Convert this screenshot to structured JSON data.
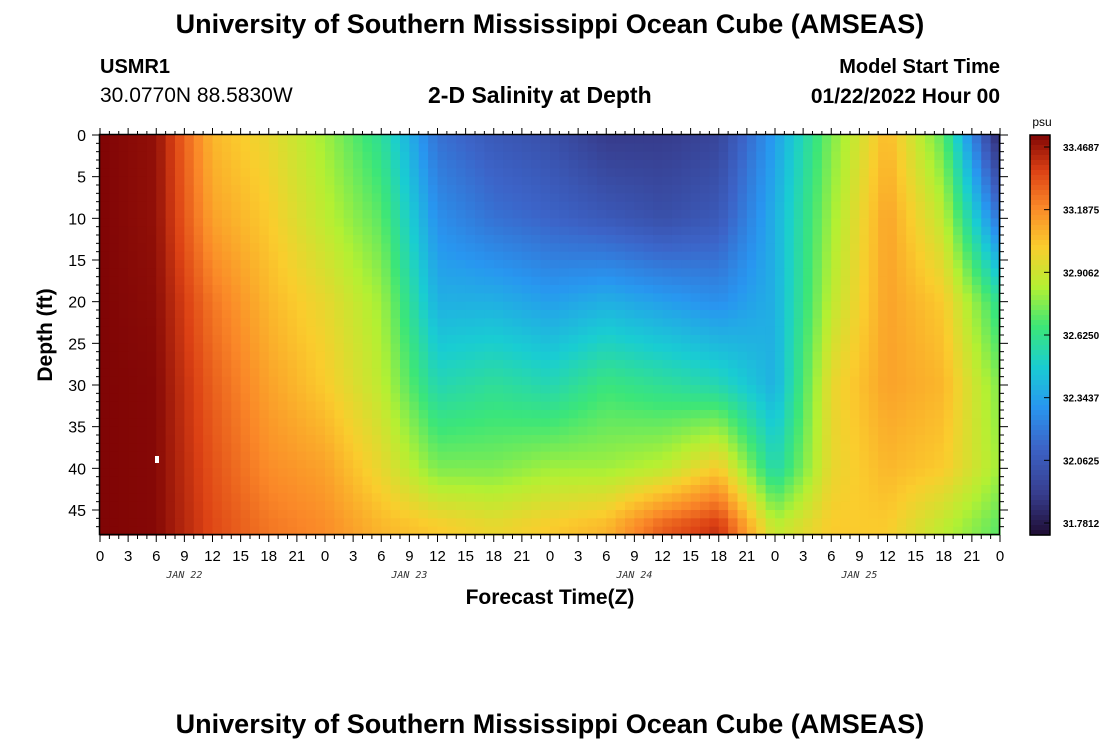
{
  "header": {
    "title": "University of Southern Mississippi Ocean Cube (AMSEAS)",
    "station_id": "USMR1",
    "station_location": "30.0770N  88.5830W",
    "plot_title": "2-D Salinity at Depth",
    "start_label": "Model Start Time",
    "start_value": "01/22/2022 Hour 00"
  },
  "footer": {
    "title": "University of Southern Mississippi Ocean Cube (AMSEAS)"
  },
  "chart_data": {
    "type": "heatmap",
    "title": "2-D Salinity at Depth",
    "xlabel": "Forecast Time(Z)",
    "ylabel": "Depth (ft)",
    "x_ticks": [
      "0",
      "3",
      "6",
      "9",
      "12",
      "15",
      "18",
      "21",
      "0",
      "3",
      "6",
      "9",
      "12",
      "15",
      "18",
      "21",
      "0",
      "3",
      "6",
      "9",
      "12",
      "15",
      "18",
      "21",
      "0",
      "3",
      "6",
      "9",
      "12",
      "15",
      "18",
      "21",
      "0"
    ],
    "x_hours": [
      0,
      3,
      6,
      9,
      12,
      15,
      18,
      21,
      24,
      27,
      30,
      33,
      36,
      39,
      42,
      45,
      48,
      51,
      54,
      57,
      60,
      63,
      66,
      69,
      72,
      75,
      78,
      81,
      84,
      87,
      90,
      93,
      96
    ],
    "date_labels": [
      {
        "label": "JAN 22",
        "hour": 9
      },
      {
        "label": "JAN 23",
        "hour": 33
      },
      {
        "label": "JAN 24",
        "hour": 57
      },
      {
        "label": "JAN 25",
        "hour": 81
      }
    ],
    "y_ticks": [
      0,
      5,
      10,
      15,
      20,
      25,
      30,
      35,
      40,
      45
    ],
    "xlim": [
      0,
      96
    ],
    "ylim": [
      0,
      48
    ],
    "colorbar": {
      "unit": "psu",
      "range": [
        31.7812,
        33.4687
      ],
      "ticks": [
        "33.4687",
        "33.1875",
        "32.9062",
        "32.6250",
        "32.3437",
        "32.0625",
        "31.7812"
      ],
      "tick_values": [
        33.4687,
        33.1875,
        32.9062,
        32.625,
        32.3437,
        32.0625,
        31.7812
      ]
    },
    "time_hours": [
      0,
      6,
      12,
      18,
      24,
      30,
      36,
      42,
      48,
      54,
      60,
      66,
      72,
      78,
      84,
      90,
      96
    ],
    "depths_ft": [
      0,
      10,
      20,
      30,
      40,
      47
    ],
    "values": [
      [
        33.47,
        33.47,
        33.47,
        33.47,
        33.47,
        33.47
      ],
      [
        33.44,
        33.44,
        33.45,
        33.46,
        33.46,
        33.46
      ],
      [
        33.05,
        33.1,
        33.2,
        33.25,
        33.28,
        33.3
      ],
      [
        32.95,
        33.0,
        33.05,
        33.1,
        33.15,
        33.2
      ],
      [
        32.8,
        32.85,
        32.95,
        33.0,
        33.1,
        33.15
      ],
      [
        32.6,
        32.7,
        32.8,
        32.85,
        32.95,
        33.05
      ],
      [
        32.2,
        32.3,
        32.4,
        32.55,
        32.75,
        33.0
      ],
      [
        32.1,
        32.2,
        32.4,
        32.6,
        32.75,
        32.95
      ],
      [
        32.05,
        32.15,
        32.35,
        32.55,
        32.8,
        33.0
      ],
      [
        31.95,
        32.1,
        32.4,
        32.65,
        32.8,
        33.05
      ],
      [
        31.95,
        32.05,
        32.35,
        32.6,
        32.85,
        33.25
      ],
      [
        32.0,
        32.1,
        32.3,
        32.55,
        33.0,
        33.35
      ],
      [
        32.35,
        32.4,
        32.4,
        32.4,
        32.55,
        32.85
      ],
      [
        32.75,
        32.8,
        32.85,
        32.95,
        32.95,
        33.0
      ],
      [
        33.05,
        33.1,
        33.1,
        33.1,
        33.05,
        33.0
      ],
      [
        32.7,
        32.85,
        33.0,
        33.05,
        33.0,
        32.85
      ],
      [
        31.85,
        32.2,
        32.6,
        32.75,
        32.8,
        32.7
      ]
    ],
    "grid": false,
    "legend": "right"
  }
}
